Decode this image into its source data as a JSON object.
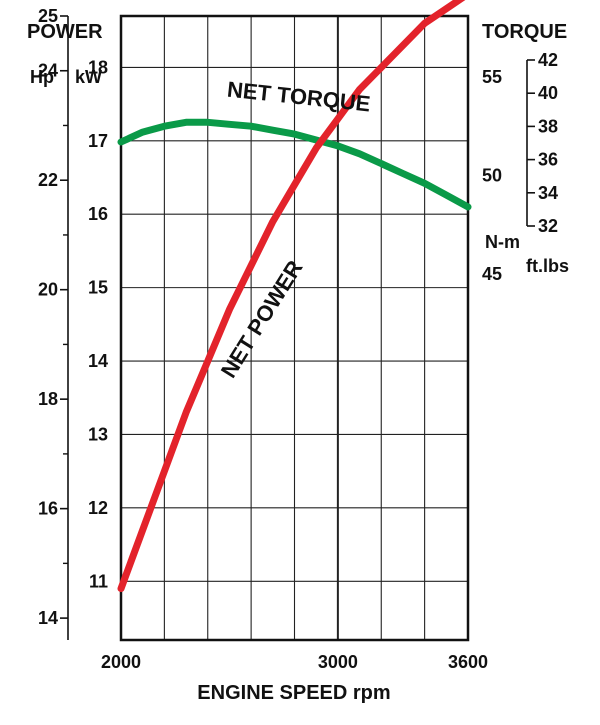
{
  "chart_data": {
    "type": "line",
    "xlabel": "ENGINE SPEED rpm",
    "x_ticks": [
      "2000",
      "3000",
      "3600"
    ],
    "x_range": [
      2000,
      3600
    ],
    "power_title": "POWER",
    "torque_title": "TORQUE",
    "axes": {
      "hp": {
        "unit": "Hp",
        "range": [
          13.6,
          25
        ],
        "major_ticks": [
          14,
          16,
          18,
          20,
          22,
          24,
          25
        ],
        "minor_ticks": [
          15,
          17,
          19,
          21,
          23
        ]
      },
      "kw": {
        "unit": "kW",
        "range": [
          10.2,
          18.7
        ],
        "ticks": [
          11,
          12,
          13,
          14,
          15,
          16,
          17,
          18
        ]
      },
      "nm": {
        "unit": "N-m",
        "range": [
          26.4,
          58.1
        ],
        "ticks": [
          45,
          50,
          55
        ]
      },
      "ftlbs": {
        "unit": "ft.lbs",
        "range": [
          32,
          42
        ],
        "ticks": [
          32,
          34,
          36,
          38,
          40,
          42
        ]
      }
    },
    "series": [
      {
        "name": "NET TORQUE",
        "axis": "nm",
        "color": "#0a9a48",
        "x": [
          2000,
          2100,
          2200,
          2300,
          2400,
          2500,
          2600,
          2700,
          2800,
          2900,
          3000,
          3100,
          3200,
          3300,
          3400,
          3500,
          3600
        ],
        "y": [
          51.7,
          52.2,
          52.5,
          52.7,
          52.7,
          52.6,
          52.5,
          52.3,
          52.1,
          51.8,
          51.5,
          51.1,
          50.6,
          50.1,
          49.6,
          49.0,
          48.4
        ]
      },
      {
        "name": "NET POWER",
        "axis": "kw",
        "color": "#e3232b",
        "x": [
          2000,
          2100,
          2200,
          2300,
          2400,
          2500,
          2600,
          2700,
          2800,
          2900,
          3000,
          3100,
          3200,
          3300,
          3400,
          3500,
          3600
        ],
        "y": [
          10.9,
          11.7,
          12.5,
          13.3,
          14.0,
          14.7,
          15.3,
          15.9,
          16.4,
          16.9,
          17.3,
          17.7,
          18.0,
          18.3,
          18.6,
          18.8,
          19.0
        ]
      }
    ],
    "grid": true
  }
}
